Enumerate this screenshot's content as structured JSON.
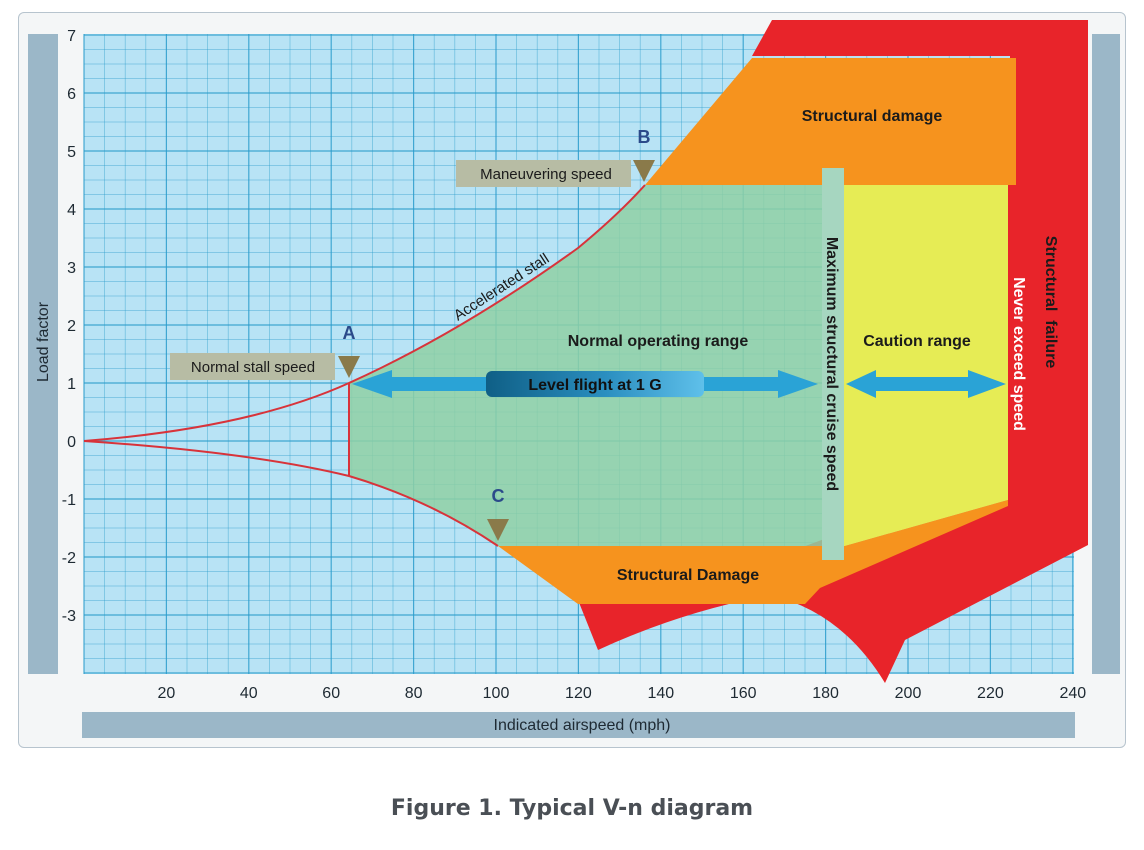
{
  "figure": {
    "caption": "Figure 1. Typical V-n diagram"
  },
  "axes": {
    "ylabel": "Load factor",
    "xlabel": "Indicated airspeed (mph)",
    "x_ticks": [
      "20",
      "40",
      "60",
      "80",
      "100",
      "120",
      "140",
      "160",
      "180",
      "200",
      "220",
      "240"
    ],
    "y_ticks": [
      "7",
      "6",
      "5",
      "4",
      "3",
      "2",
      "1",
      "0",
      "-1",
      "-2",
      "-3"
    ]
  },
  "regions": {
    "structural_damage_top": "Structural damage",
    "structural_damage_bottom": "Structural Damage",
    "normal_operating": "Normal operating range",
    "caution": "Caution range",
    "structural_failure": "Structural  failure"
  },
  "labels": {
    "accelerated_stall": "Accelerated stall",
    "max_structural_cruise": "Maximum structural cruise speed",
    "never_exceed": "Never exceed speed",
    "level_flight": "Level flight at 1 G",
    "point_a": "A",
    "point_b": "B",
    "point_c": "C",
    "normal_stall": "Normal stall speed",
    "maneuvering": "Maneuvering speed"
  },
  "colors": {
    "grid_bg": "#b8e3f5",
    "grid_line": "#2a9ccb",
    "normal_range": "#8fd0a4",
    "caution": "#e6ec55",
    "damage": "#f6931e",
    "failure": "#e8242a",
    "envelope_line": "#d8333a",
    "sidebar": "#9bb7c8",
    "arrow": "#2aa3d6"
  }
}
